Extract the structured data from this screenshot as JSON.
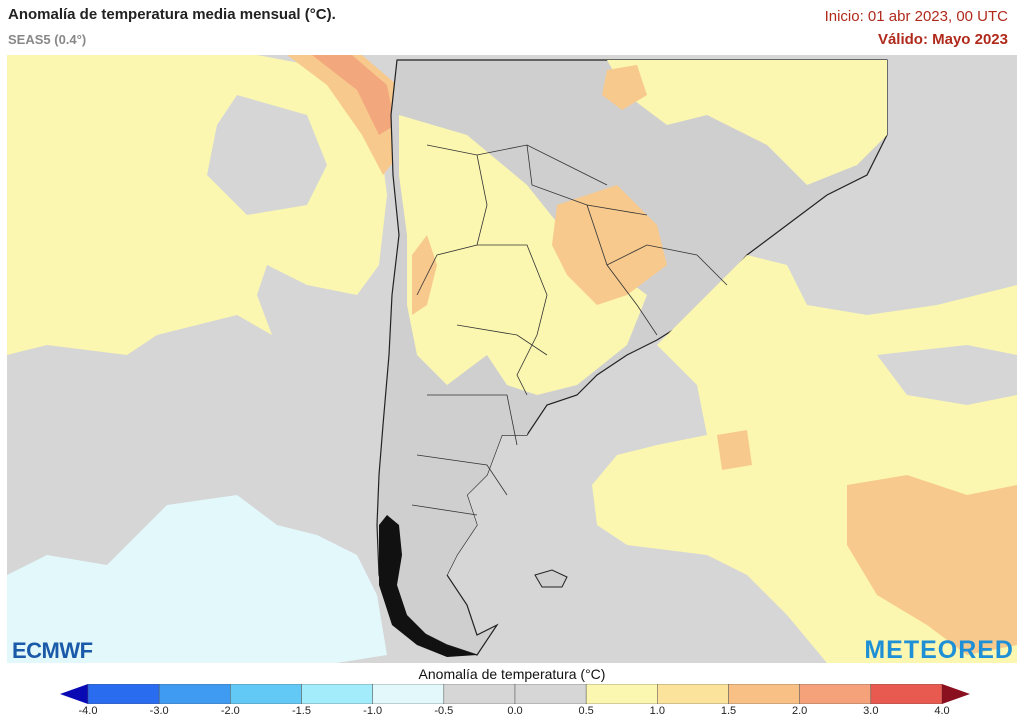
{
  "header": {
    "title": "Anomalía de temperatura media mensual (°C).",
    "model": "SEAS5 (0.4°)",
    "init": "Inicio: 01 abr 2023, 00 UTC",
    "valid": "Válido: Mayo 2023"
  },
  "logos": {
    "left": "ECMWF",
    "right": "METEORED"
  },
  "colorbar": {
    "title": "Anomalía de temperatura (°C)",
    "ticks": [
      "-4.0",
      "-3.0",
      "-2.0",
      "-1.5",
      "-1.0",
      "-0.5",
      "0.0",
      "0.5",
      "1.0",
      "1.5",
      "2.0",
      "3.0",
      "4.0"
    ],
    "colors": [
      "#1a1ee0",
      "#2a6cf0",
      "#3f9bf2",
      "#62c9f7",
      "#a3ecfb",
      "#e2f8fb",
      "#d6d6d6",
      "#d6d6d6",
      "#fbf7b0",
      "#fbe39c",
      "#f8c085",
      "#f5a17a",
      "#e8594f",
      "#c4212f"
    ],
    "under_color": "#0a0ab5",
    "over_color": "#8a1020"
  },
  "map": {
    "colors": {
      "grey": "#d6d6d6",
      "yellow": "#fbf7b0",
      "orange": "#f8c98d",
      "dark_orange": "#f3a77c",
      "light_blue": "#e2f8fb",
      "land_grey": "#cfcfcf"
    }
  }
}
